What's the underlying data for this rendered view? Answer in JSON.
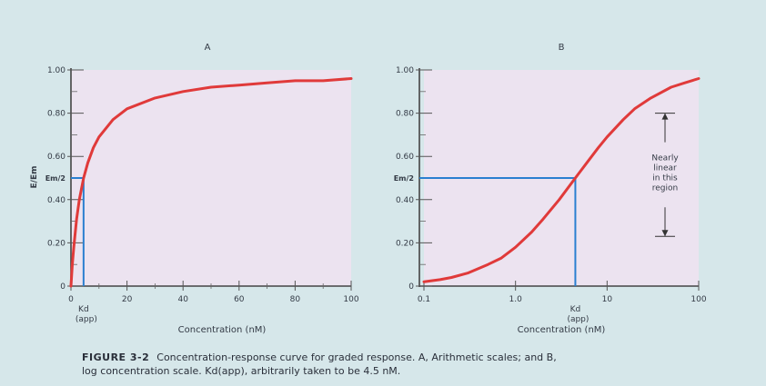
{
  "chart_data": [
    {
      "type": "line",
      "title": "A",
      "xlabel": "Concentration (nM)",
      "ylabel": "E/Em",
      "x_scale": "linear",
      "xlim": [
        0,
        100
      ],
      "ylim": [
        0,
        1.0
      ],
      "x_ticks": [
        "0",
        "20",
        "40",
        "60",
        "80",
        "100"
      ],
      "y_ticks": [
        "0",
        "0.20",
        "0.40",
        "0.60",
        "0.80",
        "1.00"
      ],
      "series": [
        {
          "color": "#e03a3a",
          "x": [
            0,
            0.5,
            1,
            2,
            3,
            4.5,
            6,
            8,
            10,
            15,
            20,
            30,
            40,
            50,
            60,
            70,
            80,
            90,
            100
          ],
          "y": [
            0,
            0.1,
            0.18,
            0.31,
            0.4,
            0.5,
            0.57,
            0.64,
            0.69,
            0.77,
            0.82,
            0.87,
            0.9,
            0.92,
            0.93,
            0.94,
            0.95,
            0.95,
            0.96
          ]
        }
      ],
      "reference": {
        "color": "#2a7fd0",
        "x": 4.5,
        "y": 0.5
      },
      "annotations": {
        "em2": "Em/2",
        "kd": "Kd",
        "kd_app": "(app)"
      }
    },
    {
      "type": "line",
      "title": "B",
      "xlabel": "Concentration (nM)",
      "ylabel": "",
      "x_scale": "log",
      "xlim": [
        0.1,
        100
      ],
      "ylim": [
        0,
        1.0
      ],
      "x_ticks": [
        "0.1",
        "1.0",
        "10",
        "100"
      ],
      "y_ticks": [
        "0",
        "0.20",
        "0.40",
        "0.60",
        "0.80",
        "1.00"
      ],
      "series": [
        {
          "color": "#e03a3a",
          "x": [
            0.1,
            0.15,
            0.2,
            0.3,
            0.5,
            0.7,
            1,
            1.5,
            2,
            3,
            4.5,
            6,
            8,
            10,
            15,
            20,
            30,
            50,
            70,
            100
          ],
          "y": [
            0.02,
            0.03,
            0.04,
            0.06,
            0.1,
            0.13,
            0.18,
            0.25,
            0.31,
            0.4,
            0.5,
            0.57,
            0.64,
            0.69,
            0.77,
            0.82,
            0.87,
            0.92,
            0.94,
            0.96
          ]
        }
      ],
      "reference": {
        "color": "#2a7fd0",
        "x": 4.5,
        "y": 0.5
      },
      "annotations": {
        "em2": "Em/2",
        "kd": "Kd",
        "kd_app": "(app)",
        "linear_note": [
          "Nearly",
          "linear",
          "in this",
          "region"
        ]
      }
    }
  ],
  "caption": {
    "figure_number": "FIGURE 3-2",
    "line1": "Concentration-response curve for graded response. A, Arithmetic scales; and B,",
    "line2": "log concentration scale. Kd(app), arbitrarily taken to be 4.5 nM."
  }
}
